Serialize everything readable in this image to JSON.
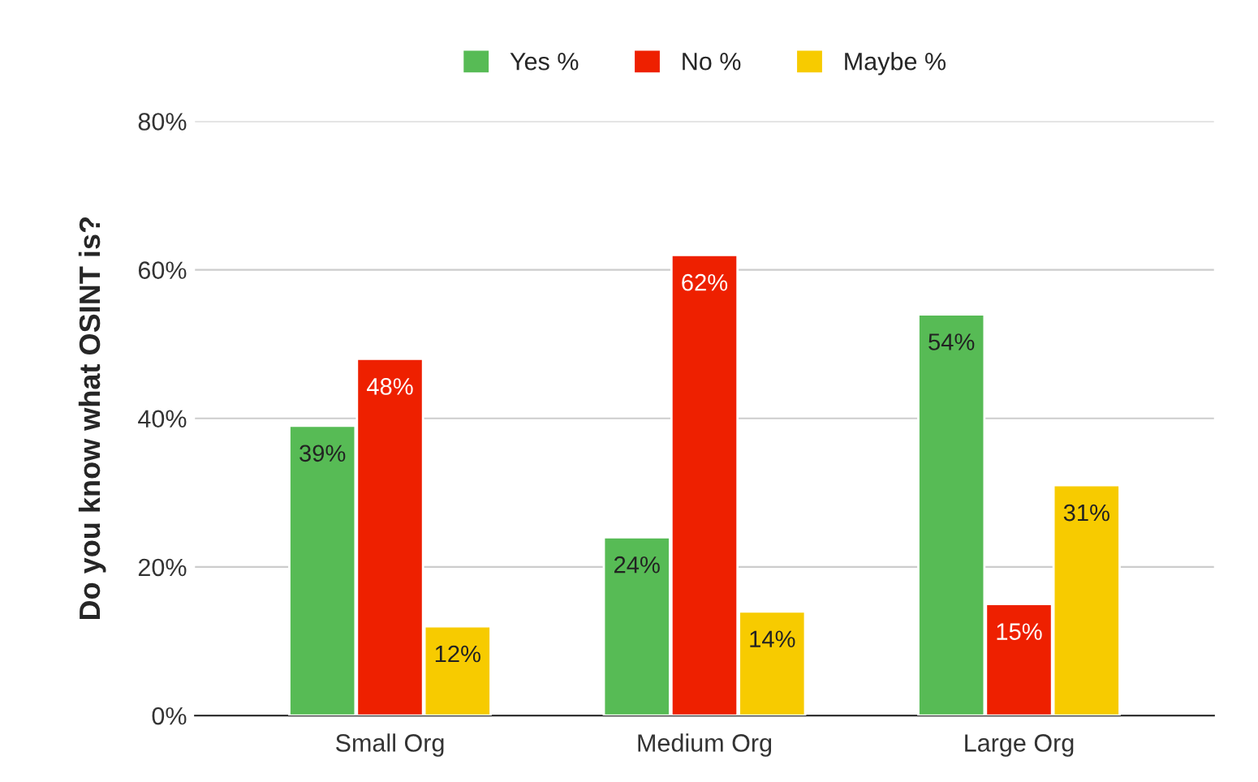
{
  "chart_data": {
    "type": "bar",
    "ylabel": "Do you know what OSINT is?",
    "categories": [
      "Small Org",
      "Medium Org",
      "Large Org"
    ],
    "series": [
      {
        "name": "Yes %",
        "color": "#57bb55",
        "values": [
          39,
          24,
          54
        ],
        "value_labels": [
          "39%",
          "24%",
          "54%"
        ]
      },
      {
        "name": "No %",
        "color": "#ee2000",
        "values": [
          48,
          62,
          15
        ],
        "value_labels": [
          "48%",
          "62%",
          "15%"
        ]
      },
      {
        "name": "Maybe %",
        "color": "#f7cb00",
        "values": [
          12,
          14,
          31
        ],
        "value_labels": [
          "12%",
          "14%",
          "31%"
        ]
      }
    ],
    "ylim": [
      0,
      80
    ],
    "yticks": [
      {
        "value": 0,
        "label": "0%"
      },
      {
        "value": 20,
        "label": "20%"
      },
      {
        "value": 40,
        "label": "40%"
      },
      {
        "value": 60,
        "label": "60%"
      },
      {
        "value": 80,
        "label": "80%"
      }
    ],
    "grid": "y",
    "legend": "top"
  }
}
